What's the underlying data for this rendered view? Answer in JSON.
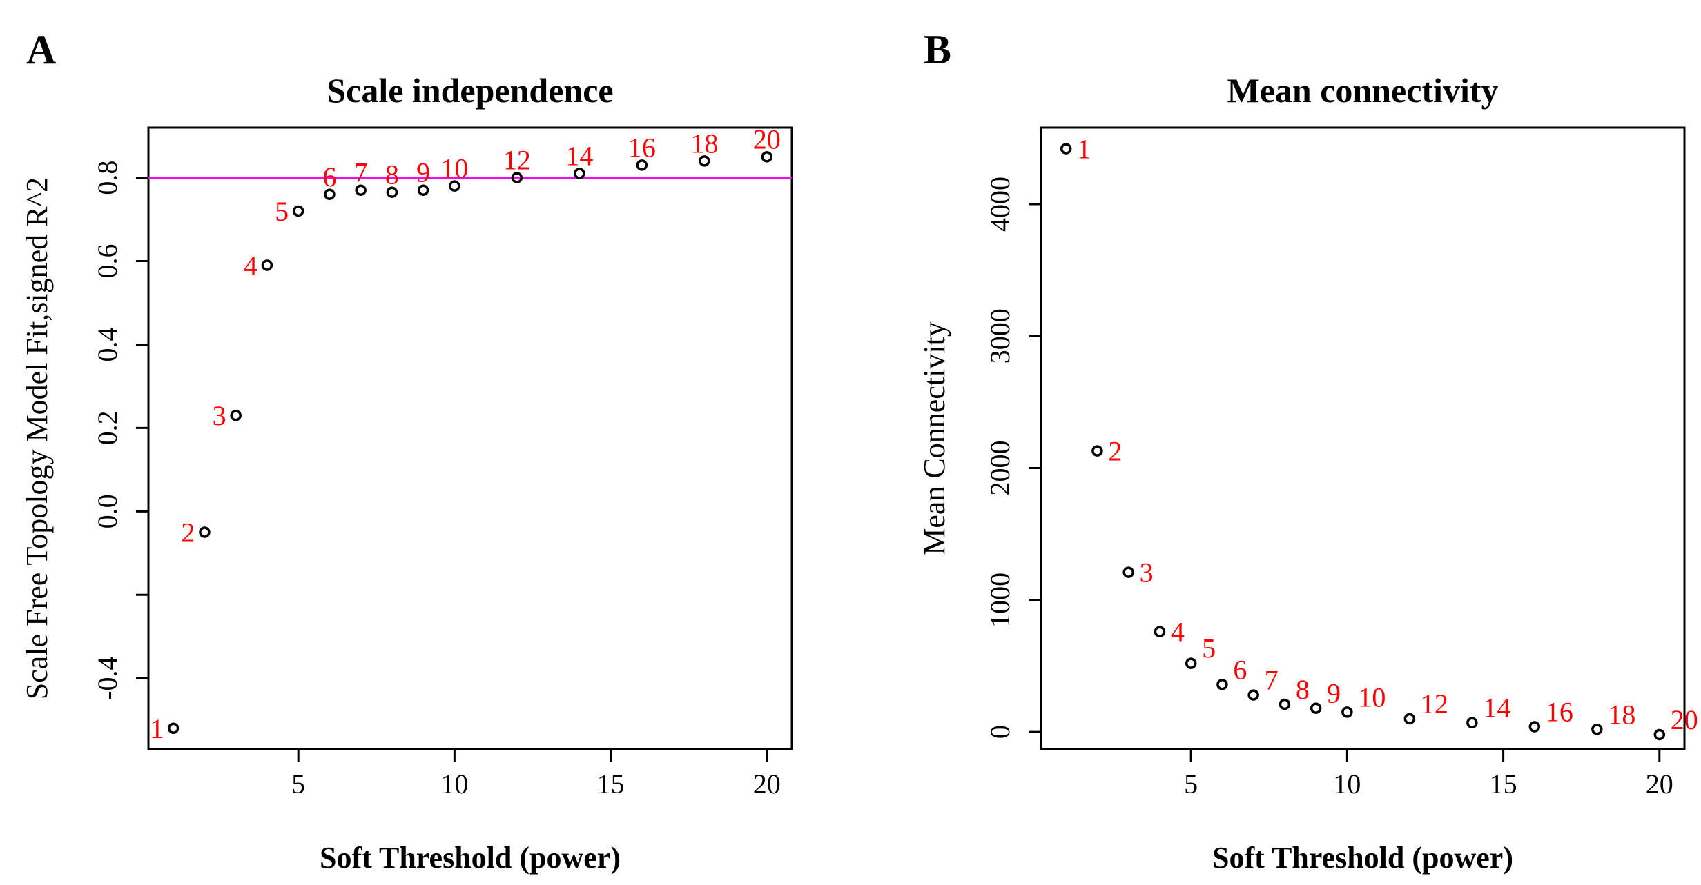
{
  "chart_data": [
    {
      "type": "scatter",
      "panel": "A",
      "title": "Scale independence",
      "xlabel": "Soft Threshold (power)",
      "ylabel": "Scale Free Topology Model Fit,signed R^2",
      "xlim": [
        0.2,
        20.8
      ],
      "ylim": [
        -0.57,
        0.92
      ],
      "xticks": [
        "5",
        "10",
        "15",
        "20"
      ],
      "xtick_values": [
        5,
        10,
        15,
        20
      ],
      "yticks": [
        "-0.4",
        "",
        "0.0",
        "0.2",
        "0.4",
        "0.6",
        "0.8"
      ],
      "ytick_values": [
        -0.4,
        -0.2,
        0.0,
        0.2,
        0.4,
        0.6,
        0.8
      ],
      "hline": {
        "y": 0.8,
        "color": "#ff00ff"
      },
      "point_label_color": "#ff0000",
      "point_color": "#000000",
      "labels": [
        "1",
        "2",
        "3",
        "4",
        "5",
        "6",
        "7",
        "8",
        "9",
        "10",
        "12",
        "14",
        "16",
        "18",
        "20"
      ],
      "x": [
        1,
        2,
        3,
        4,
        5,
        6,
        7,
        8,
        9,
        10,
        12,
        14,
        16,
        18,
        20
      ],
      "y": [
        -0.52,
        -0.05,
        0.23,
        0.59,
        0.72,
        0.76,
        0.77,
        0.765,
        0.77,
        0.78,
        0.8,
        0.81,
        0.83,
        0.84,
        0.85
      ]
    },
    {
      "type": "scatter",
      "panel": "B",
      "title": "Mean connectivity",
      "xlabel": "Soft Threshold (power)",
      "ylabel": "Mean Connectivity",
      "xlim": [
        0.2,
        20.8
      ],
      "ylim": [
        -130,
        4580
      ],
      "xticks": [
        "5",
        "10",
        "15",
        "20"
      ],
      "xtick_values": [
        5,
        10,
        15,
        20
      ],
      "yticks": [
        "0",
        "1000",
        "2000",
        "3000",
        "4000"
      ],
      "ytick_values": [
        0,
        1000,
        2000,
        3000,
        4000
      ],
      "point_label_color": "#ff0000",
      "point_color": "#000000",
      "labels": [
        "1",
        "2",
        "3",
        "4",
        "5",
        "6",
        "7",
        "8",
        "9",
        "10",
        "12",
        "14",
        "16",
        "18",
        "20"
      ],
      "x": [
        1,
        2,
        3,
        4,
        5,
        6,
        7,
        8,
        9,
        10,
        12,
        14,
        16,
        18,
        20
      ],
      "y": [
        4420,
        2130,
        1210,
        760,
        520,
        360,
        280,
        210,
        180,
        150,
        100,
        70,
        40,
        20,
        -20
      ]
    }
  ]
}
